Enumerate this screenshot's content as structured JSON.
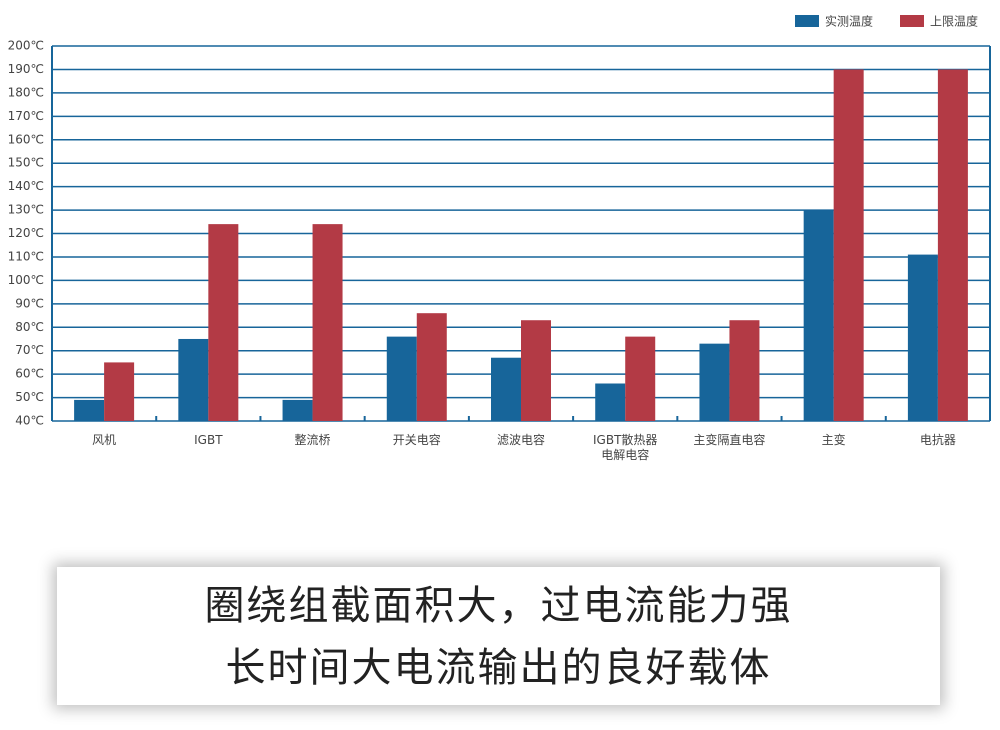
{
  "chart_data": {
    "type": "bar",
    "categories": [
      "风机",
      "IGBT",
      "整流桥",
      "开关电容",
      "滤波电容",
      "IGBT散热器\n电解电容",
      "主变隔直电容",
      "主变",
      "电抗器"
    ],
    "series": [
      {
        "name": "实测温度",
        "color": "#17659a",
        "values": [
          49,
          75,
          49,
          76,
          67,
          56,
          73,
          130,
          111
        ]
      },
      {
        "name": "上限温度",
        "color": "#b33a45",
        "values": [
          65,
          124,
          124,
          86,
          83,
          76,
          83,
          190,
          190
        ]
      }
    ],
    "ylim": [
      40,
      200
    ],
    "yticks": [
      {
        "value": 40,
        "label": "40℃"
      },
      {
        "value": 50,
        "label": "50℃"
      },
      {
        "value": 60,
        "label": "60℃"
      },
      {
        "value": 70,
        "label": "70℃"
      },
      {
        "value": 80,
        "label": "80℃"
      },
      {
        "value": 90,
        "label": "90℃"
      },
      {
        "value": 100,
        "label": "100℃"
      },
      {
        "value": 110,
        "label": "110℃"
      },
      {
        "value": 120,
        "label": "120℃"
      },
      {
        "value": 130,
        "label": "130℃"
      },
      {
        "value": 140,
        "label": "140℃"
      },
      {
        "value": 150,
        "label": "150℃"
      },
      {
        "value": 160,
        "label": "160℃"
      },
      {
        "value": 170,
        "label": "170℃"
      },
      {
        "value": 180,
        "label": "180℃"
      },
      {
        "value": 190,
        "label": "190℃"
      },
      {
        "value": 200,
        "label": "200℃"
      }
    ],
    "grid": true,
    "legend": "top-right"
  },
  "caption": [
    "圈绕组截面积大，过电流能力强",
    "长时间大电流输出的良好载体"
  ]
}
